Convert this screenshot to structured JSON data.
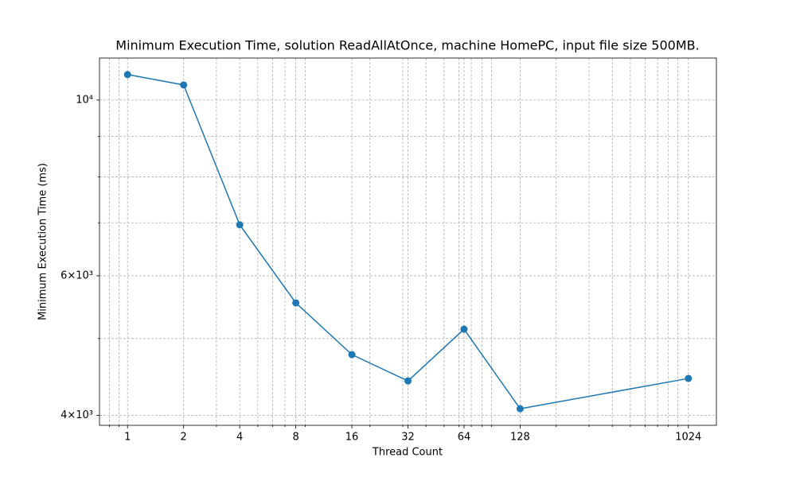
{
  "chart_data": {
    "type": "line",
    "title": "Minimum Execution Time, solution ReadAllAtOnce, machine HomePC, input file size 500MB.",
    "xlabel": "Thread Count",
    "ylabel": "Minimum Execution Time (ms)",
    "x": [
      1,
      2,
      4,
      8,
      16,
      32,
      64,
      128,
      1024
    ],
    "values": [
      10770,
      10450,
      6960,
      5546,
      4772,
      4420,
      5138,
      4077,
      4452
    ],
    "color": "#1f77b4",
    "marker": "circle",
    "xscale": "log",
    "yscale": "log",
    "xlim": [
      0.707,
      1448
    ],
    "ylim": [
      3885,
      11300
    ],
    "xticks": [
      1,
      2,
      4,
      8,
      16,
      32,
      64,
      128,
      1024
    ],
    "xminor": [
      0.8,
      0.9,
      3,
      5,
      6,
      7,
      9,
      20,
      30,
      40,
      50,
      60,
      70,
      80,
      90,
      200,
      300,
      400,
      500,
      600,
      700,
      800,
      900
    ],
    "yticks": [
      {
        "value": 4000,
        "label": "4×10³"
      },
      {
        "value": 6000,
        "label": "6×10³"
      },
      {
        "value": 10000,
        "label": "10⁴"
      }
    ],
    "yminor": [
      5000,
      7000,
      8000,
      9000
    ],
    "grid": true
  }
}
